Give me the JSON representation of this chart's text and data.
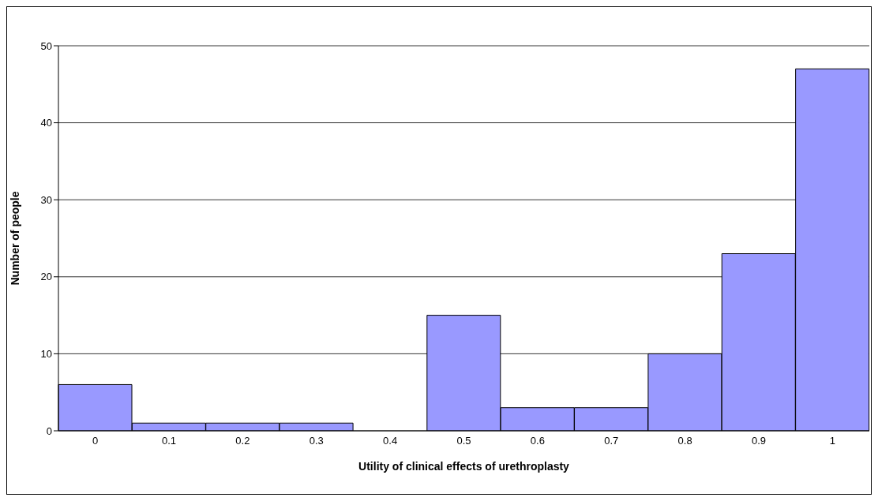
{
  "chart_data": {
    "type": "bar",
    "xlabel": "Utility of clinical effects of urethroplasty",
    "ylabel": "Number of people",
    "categories": [
      "0",
      "0.1",
      "0.2",
      "0.3",
      "0.4",
      "0.5",
      "0.6",
      "0.7",
      "0.8",
      "0.9",
      "1"
    ],
    "values": [
      6,
      1,
      1,
      1,
      0,
      15,
      3,
      3,
      10,
      23,
      47
    ],
    "color": "#9999ff",
    "ylim": [
      0,
      50
    ],
    "yticks": [
      0,
      10,
      20,
      30,
      40,
      50
    ],
    "grid": "y"
  }
}
